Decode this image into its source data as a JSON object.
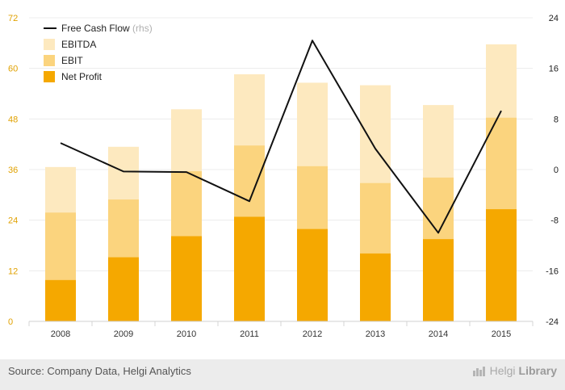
{
  "chart_data": {
    "type": "bar",
    "categories": [
      "2008",
      "2009",
      "2010",
      "2011",
      "2012",
      "2013",
      "2014",
      "2015"
    ],
    "series": [
      {
        "name": "Net Profit",
        "kind": "bar",
        "axis": "left",
        "color": "#f5a800",
        "values": [
          9.8,
          15.2,
          20.2,
          24.8,
          21.9,
          16.1,
          19.5,
          26.6
        ]
      },
      {
        "name": "EBIT",
        "kind": "bar",
        "axis": "left",
        "color": "#fbd47e",
        "values": [
          25.8,
          28.9,
          35.6,
          41.7,
          36.8,
          32.8,
          34.1,
          48.3
        ]
      },
      {
        "name": "EBITDA",
        "kind": "bar",
        "axis": "left",
        "color": "#fde9bf",
        "values": [
          36.6,
          41.4,
          50.3,
          58.6,
          56.6,
          56.0,
          51.3,
          65.7
        ]
      },
      {
        "name": "Free Cash Flow",
        "kind": "line",
        "axis": "right",
        "color": "#111111",
        "values": [
          4.2,
          -0.3,
          -0.4,
          -5.0,
          20.4,
          3.3,
          -10.0,
          9.3
        ]
      }
    ],
    "legend": [
      {
        "label": "Free Cash Flow",
        "suffix": "(rhs)",
        "kind": "line",
        "color": "#111111"
      },
      {
        "label": "EBITDA",
        "kind": "box",
        "color": "#fde9bf"
      },
      {
        "label": "EBIT",
        "kind": "box",
        "color": "#fbd47e"
      },
      {
        "label": "Net Profit",
        "kind": "box",
        "color": "#f5a800"
      }
    ],
    "legend_position": "top-left",
    "y_left": {
      "min": 0,
      "max": 72,
      "ticks": [
        "0",
        "12",
        "24",
        "36",
        "48",
        "60",
        "72"
      ],
      "tick_color": "#e0a100"
    },
    "y_right": {
      "min": -24,
      "max": 24,
      "ticks": [
        "-24",
        "-16",
        "-8",
        "0",
        "8",
        "16",
        "24"
      ],
      "tick_color": "#222222"
    },
    "grid": true
  },
  "footer": {
    "source": "Source: Company Data, Helgi Analytics",
    "brand_regular": "Helgi",
    "brand_bold": "Library"
  }
}
